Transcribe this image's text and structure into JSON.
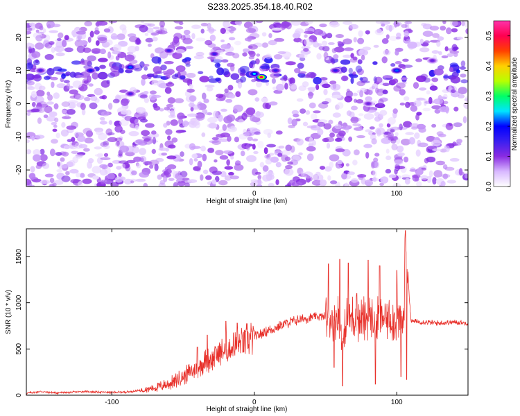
{
  "figure": {
    "title": "S233.2025.354.18.40.R02"
  },
  "colors": {
    "snr_line": "#e8302a",
    "spectrogram_low": "#ffffff",
    "spectrogram_mid": "#7a1fe8",
    "colorbar_stops": [
      "#ffffff",
      "#d8b8ff",
      "#8a2be2",
      "#3a1ff0",
      "#0000ff",
      "#00e5ff",
      "#00ff66",
      "#b8ff00",
      "#ffd000",
      "#ff4000",
      "#ff0050",
      "#ff33aa"
    ]
  },
  "chart_data": [
    {
      "type": "heatmap",
      "xlabel": "Height of straight line (km)",
      "ylabel": "Frequency (Hz)",
      "xlim": [
        -160,
        150
      ],
      "ylim": [
        -25,
        25
      ],
      "x_ticks": [
        -100,
        0,
        100
      ],
      "y_ticks": [
        -20,
        -10,
        0,
        10,
        20
      ],
      "x_tick_labels": [
        "-100",
        "0",
        "100"
      ],
      "y_tick_labels": [
        "-20",
        "-10",
        "0",
        "10",
        "20"
      ],
      "value_range": [
        0,
        0.55
      ],
      "band_frequency_hz": 10,
      "peaks": [
        {
          "x": 5,
          "y": 8,
          "value": 0.5
        },
        {
          "x": 0,
          "y": 9,
          "value": 0.25
        },
        {
          "x": -87,
          "y": 11,
          "value": 0.22
        },
        {
          "x": -115,
          "y": 10,
          "value": 0.18
        },
        {
          "x": 100,
          "y": 10,
          "value": 0.22
        },
        {
          "x": 57,
          "y": 10,
          "value": 0.16
        },
        {
          "x": 15,
          "y": 10,
          "value": 0.16
        },
        {
          "x": -150,
          "y": 10,
          "value": 0.14
        },
        {
          "x": -60,
          "y": 16,
          "value": 0.15
        },
        {
          "x": -28,
          "y": 15,
          "value": 0.15
        },
        {
          "x": -87,
          "y": 3,
          "value": 0.14
        },
        {
          "x": 80,
          "y": 0,
          "value": 0.12
        },
        {
          "x": 125,
          "y": 13,
          "value": 0.12
        }
      ],
      "colorbar": {
        "label": "Normalized spectral amplitude",
        "range": [
          0,
          0.55
        ],
        "ticks": [
          0.0,
          0.1,
          0.2,
          0.3,
          0.4,
          0.5
        ],
        "tick_labels": [
          "0.0",
          "0.1",
          "0.2",
          "0.3",
          "0.4",
          "0.5"
        ]
      }
    },
    {
      "type": "line",
      "xlabel": "Height of straight line (km)",
      "ylabel": "SNR (10 * v/v)",
      "xlim": [
        -160,
        150
      ],
      "ylim": [
        0,
        1800
      ],
      "x_ticks": [
        -100,
        0,
        100
      ],
      "y_ticks": [
        0,
        500,
        1000,
        1500
      ],
      "x_tick_labels": [
        "-100",
        "0",
        "100"
      ],
      "y_tick_labels": [
        "0",
        "500",
        "1000",
        "1500"
      ],
      "series": [
        {
          "values_description": "",
          "x": [
            -160,
            -150,
            -140,
            -130,
            -120,
            -110,
            -100,
            -90,
            -80,
            -70,
            -60,
            -55,
            -50,
            -45,
            -40,
            -35,
            -30,
            -25,
            -20,
            -15,
            -10,
            -5,
            0,
            5,
            10,
            15,
            20,
            25,
            30,
            35,
            40,
            45,
            50,
            55,
            60,
            62,
            65,
            70,
            75,
            80,
            85,
            90,
            95,
            100,
            105,
            106,
            110,
            120,
            130,
            140,
            150
          ],
          "y": [
            20,
            40,
            25,
            30,
            40,
            35,
            30,
            35,
            50,
            80,
            120,
            160,
            200,
            250,
            300,
            360,
            400,
            450,
            480,
            520,
            560,
            600,
            630,
            660,
            700,
            730,
            760,
            790,
            810,
            830,
            840,
            850,
            850,
            840,
            860,
            500,
            830,
            860,
            800,
            850,
            800,
            840,
            830,
            820,
            820,
            1700,
            800,
            790,
            780,
            790,
            780
          ],
          "spikes": [
            {
              "x": -40,
              "y": 520
            },
            {
              "x": -33,
              "y": 650
            },
            {
              "x": -20,
              "y": 800
            },
            {
              "x": -12,
              "y": 780
            },
            {
              "x": 52,
              "y": 1420
            },
            {
              "x": 56,
              "y": 300
            },
            {
              "x": 60,
              "y": 1470
            },
            {
              "x": 62,
              "y": 100
            },
            {
              "x": 66,
              "y": 1430
            },
            {
              "x": 72,
              "y": 1100
            },
            {
              "x": 80,
              "y": 1460
            },
            {
              "x": 85,
              "y": 120
            },
            {
              "x": 88,
              "y": 1400
            },
            {
              "x": 100,
              "y": 1350
            },
            {
              "x": 103,
              "y": 200
            },
            {
              "x": 106,
              "y": 1780
            },
            {
              "x": 107,
              "y": 170
            }
          ]
        }
      ]
    }
  ]
}
